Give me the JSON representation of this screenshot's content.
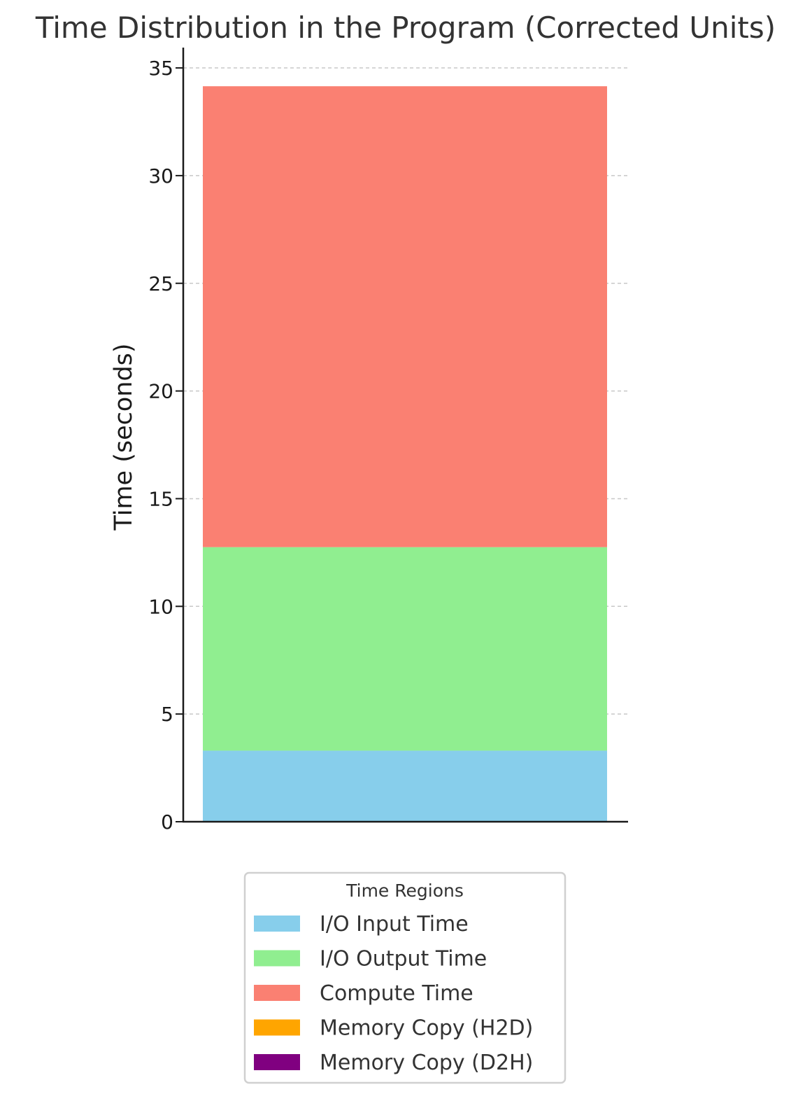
{
  "chart_data": {
    "type": "bar",
    "stacked": true,
    "title": "Time Distribution in the Program (Corrected Units)",
    "xlabel": "",
    "ylabel": "Time (seconds)",
    "categories": [
      ""
    ],
    "ylim": [
      0,
      36
    ],
    "yticks": [
      0,
      5,
      10,
      15,
      20,
      25,
      30,
      35
    ],
    "grid": "y-dashed",
    "legend": {
      "title": "Time Regions",
      "placement": "bottom-center"
    },
    "series": [
      {
        "name": "I/O Input Time",
        "values": [
          3.3
        ],
        "color": "#87CEEB"
      },
      {
        "name": "I/O Output Time",
        "values": [
          9.45
        ],
        "color": "#90EE90"
      },
      {
        "name": "Compute Time",
        "values": [
          21.4
        ],
        "color": "#FA8072"
      },
      {
        "name": "Memory Copy (H2D)",
        "values": [
          0
        ],
        "color": "#FFA500"
      },
      {
        "name": "Memory Copy (D2H)",
        "values": [
          0
        ],
        "color": "#800080"
      }
    ]
  }
}
